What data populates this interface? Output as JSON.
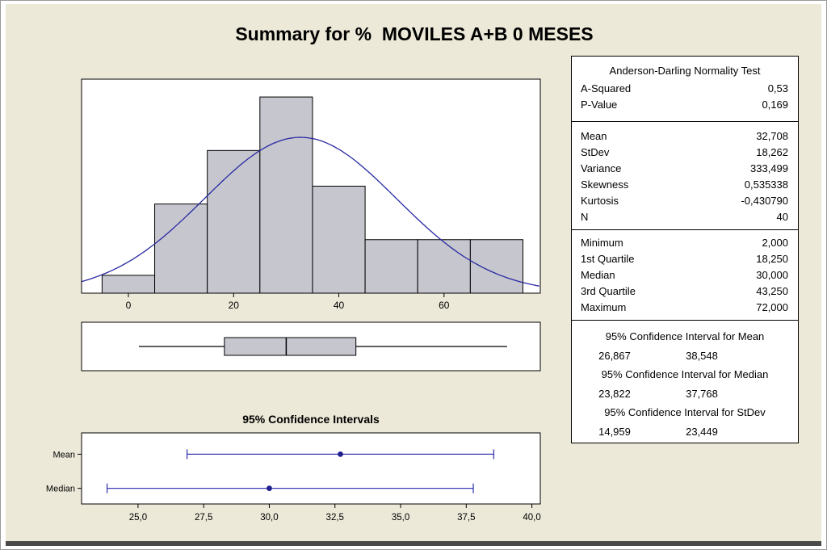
{
  "title": "Summary for %  MOVILES A+B 0 MESES",
  "colors": {
    "background": "#ece9d8",
    "panel": "#ffffff",
    "border": "#000000",
    "bar_fill": "#c6c6cf",
    "curve": "#2929a3",
    "interval_line": "#3b3bb5",
    "interval_point": "#1f1f8f"
  },
  "chart_data": [
    {
      "type": "bar",
      "name": "histogram-with-normal-curve",
      "bin_centers": [
        0,
        10,
        20,
        30,
        40,
        50,
        60,
        70
      ],
      "counts": [
        1,
        5,
        8,
        11,
        6,
        3,
        3,
        3
      ],
      "bin_width": 10,
      "x_tick_values": [
        0,
        20,
        40,
        60
      ],
      "x_tick_labels": [
        "0",
        "20",
        "40",
        "60"
      ],
      "xlim": [
        -8.9,
        78.3
      ],
      "ylim": [
        0,
        12
      ],
      "grid": false,
      "normal_overlay": {
        "mean": 32.708,
        "stdev": 18.262,
        "n": 40
      }
    },
    {
      "type": "boxplot",
      "name": "boxplot",
      "min": 2.0,
      "q1": 18.25,
      "median": 30.0,
      "q3": 43.25,
      "max": 72.0,
      "xlim": [
        -8.9,
        78.3
      ]
    },
    {
      "type": "interval",
      "name": "confidence-intervals",
      "title": "95% Confidence Intervals",
      "rows": [
        {
          "label": "Mean",
          "low": 26.867,
          "point": 32.708,
          "high": 38.548
        },
        {
          "label": "Median",
          "low": 23.822,
          "point": 30.0,
          "high": 37.768
        }
      ],
      "x_tick_values": [
        25,
        27.5,
        30,
        32.5,
        35,
        37.5,
        40
      ],
      "x_tick_labels": [
        "25,0",
        "27,5",
        "30,0",
        "32,5",
        "35,0",
        "37,5",
        "40,0"
      ],
      "xlim": [
        22.85,
        40.32
      ]
    }
  ],
  "stats_panel": {
    "sections": [
      {
        "header": "Anderson-Darling Normality Test",
        "rows": [
          [
            "A-Squared",
            "0,53"
          ],
          [
            "P-Value",
            "0,169"
          ]
        ]
      },
      {
        "rows": [
          [
            "Mean",
            "32,708"
          ],
          [
            "StDev",
            "18,262"
          ],
          [
            "Variance",
            "333,499"
          ],
          [
            "Skewness",
            "0,535338"
          ],
          [
            "Kurtosis",
            "-0,430790"
          ],
          [
            "N",
            "40"
          ]
        ]
      },
      {
        "rows": [
          [
            "Minimum",
            "2,000"
          ],
          [
            "1st Quartile",
            "18,250"
          ],
          [
            "Median",
            "30,000"
          ],
          [
            "3rd Quartile",
            "43,250"
          ],
          [
            "Maximum",
            "72,000"
          ]
        ]
      },
      {
        "intervals": [
          {
            "header": "95% Confidence Interval for Mean",
            "low": "26,867",
            "high": "38,548"
          },
          {
            "header": "95% Confidence Interval for Median",
            "low": "23,822",
            "high": "37,768"
          },
          {
            "header": "95% Confidence Interval for StDev",
            "low": "14,959",
            "high": "23,449"
          }
        ]
      }
    ]
  }
}
